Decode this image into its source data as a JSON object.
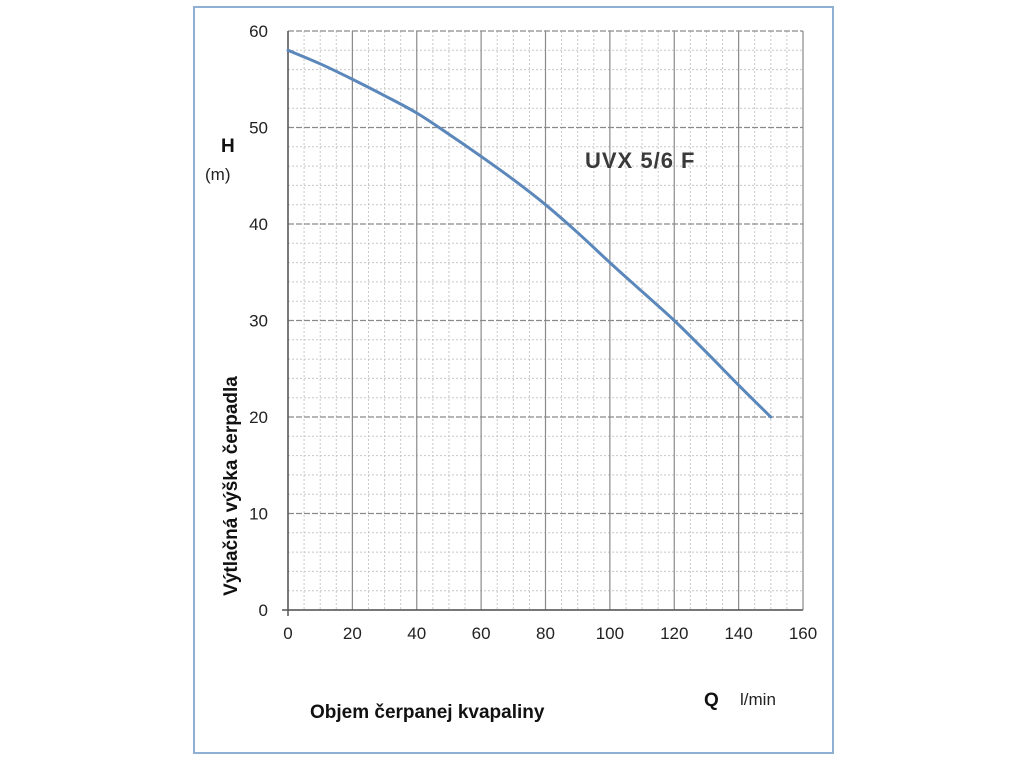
{
  "chart_data": {
    "type": "line",
    "title": "UVX 5/6 F",
    "x_axis": {
      "letter": "Q",
      "unit": "l/min",
      "label": "Objem čerpanej kvapaliny",
      "range": [
        0,
        160
      ],
      "ticks": [
        "0",
        "20",
        "40",
        "60",
        "80",
        "100",
        "120",
        "140",
        "160"
      ],
      "major_step": 20,
      "minor_step": 5
    },
    "y_axis": {
      "letter": "H",
      "unit": "(m)",
      "label": "Výtlačná výška čerpadla",
      "range": [
        0,
        60
      ],
      "ticks": [
        "0",
        "10",
        "20",
        "30",
        "40",
        "50",
        "60"
      ],
      "major_step": 10,
      "minor_step": 2
    },
    "grid": true,
    "series": [
      {
        "color": "#5b87bb",
        "x": [
          0,
          10,
          20,
          30,
          40,
          50,
          60,
          70,
          80,
          90,
          100,
          110,
          120,
          130,
          140,
          150
        ],
        "y": [
          58,
          56.6,
          55,
          53.3,
          51.5,
          49.3,
          47,
          44.6,
          42,
          39.1,
          36,
          33,
          30,
          26.7,
          23.3,
          20
        ]
      }
    ]
  }
}
